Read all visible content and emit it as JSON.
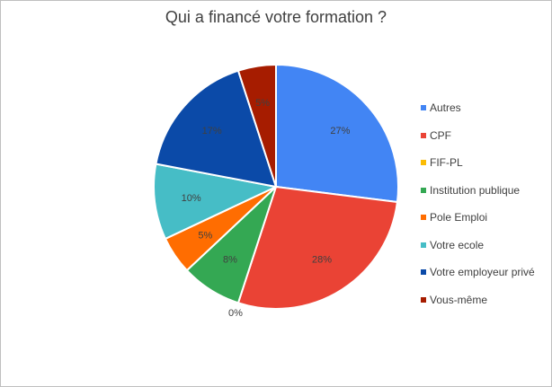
{
  "chart_data": {
    "type": "pie",
    "title": "Qui a financé votre formation ?",
    "categories": [
      "Autres",
      "CPF",
      "FIF-PL",
      "Institution publique",
      "Pole Emploi",
      "Votre ecole",
      "Votre employeur privé",
      "Vous-même"
    ],
    "values": [
      27,
      28,
      0,
      8,
      5,
      10,
      17,
      5
    ],
    "labels": [
      "27%",
      "28%",
      "0%",
      "8%",
      "5%",
      "10%",
      "17%",
      "5%"
    ],
    "colors": [
      "#4285F4",
      "#EA4335",
      "#FBBC04",
      "#34A853",
      "#FF6D01",
      "#46BDC6",
      "#0B4AA8",
      "#A61C00"
    ],
    "legend_position": "right"
  }
}
